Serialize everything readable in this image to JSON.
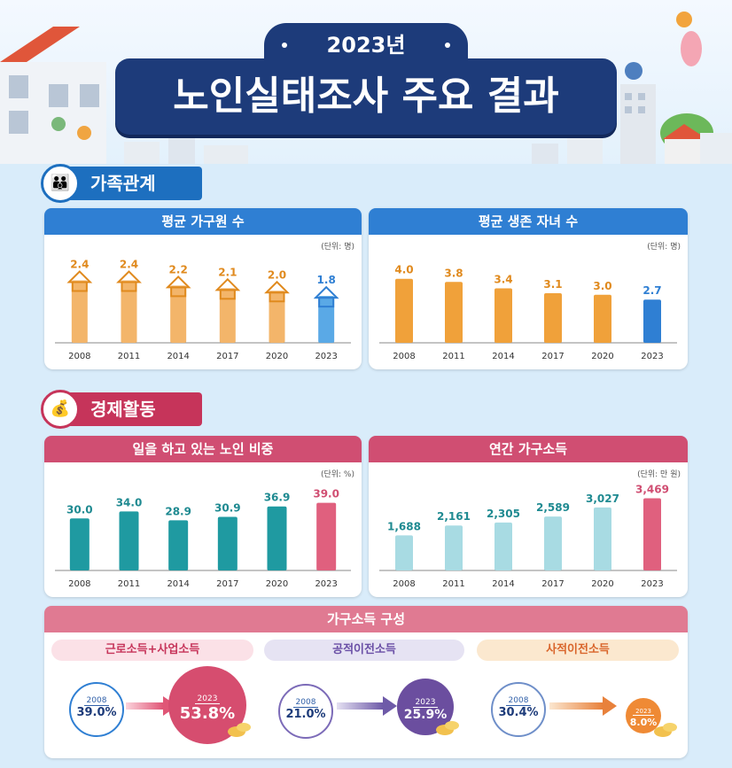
{
  "header": {
    "year_title": "2023년",
    "main_title": "노인실태조사 주요 결과"
  },
  "sections": {
    "family": "가족관계",
    "economy": "경제활동"
  },
  "colors": {
    "navy": "#1d3b7a",
    "blue": "#2f7fd3",
    "pink": "#d04e72",
    "orange_bar": "#f3b56a",
    "teal_bar": "#1f9aa1",
    "light_teal_bar": "#a8dbe3",
    "highlight_bar": "#5aa9e6",
    "highlight_pink": "#e0607e"
  },
  "chart_data": [
    {
      "type": "bar",
      "title": "평균 가구원 수",
      "unit": "(단위: 명)",
      "categories": [
        "2008",
        "2011",
        "2014",
        "2017",
        "2020",
        "2023"
      ],
      "values": [
        2.4,
        2.4,
        2.2,
        2.1,
        2.0,
        1.8
      ],
      "value_labels": [
        "2.4",
        "2.4",
        "2.2",
        "2.1",
        "2.0",
        "1.8"
      ],
      "ylim": [
        0,
        3.2
      ]
    },
    {
      "type": "bar",
      "title": "평균 생존 자녀 수",
      "unit": "(단위: 명)",
      "categories": [
        "2008",
        "2011",
        "2014",
        "2017",
        "2020",
        "2023"
      ],
      "values": [
        4.0,
        3.8,
        3.4,
        3.1,
        3.0,
        2.7
      ],
      "value_labels": [
        "4.0",
        "3.8",
        "3.4",
        "3.1",
        "3.0",
        "2.7"
      ],
      "ylim": [
        0,
        5.2
      ]
    },
    {
      "type": "bar",
      "title": "일을 하고 있는 노인 비중",
      "unit": "(단위: %)",
      "categories": [
        "2008",
        "2011",
        "2014",
        "2017",
        "2020",
        "2023"
      ],
      "values": [
        30.0,
        34.0,
        28.9,
        30.9,
        36.9,
        39.0
      ],
      "value_labels": [
        "30.0",
        "34.0",
        "28.9",
        "30.9",
        "36.9",
        "39.0"
      ],
      "ylim": [
        0,
        48
      ]
    },
    {
      "type": "bar",
      "title": "연간 가구소득",
      "unit": "(단위: 만 원)",
      "categories": [
        "2008",
        "2011",
        "2014",
        "2017",
        "2020",
        "2023"
      ],
      "values": [
        1688,
        2161,
        2305,
        2589,
        3027,
        3469
      ],
      "value_labels": [
        "1,688",
        "2,161",
        "2,305",
        "2,589",
        "3,027",
        "3,469"
      ],
      "ylim": [
        0,
        4000
      ]
    }
  ],
  "composition": {
    "title": "가구소득 구성",
    "items": [
      {
        "label": "근로소득+사업소득",
        "from_year": "2008",
        "from_value": "39.0%",
        "to_year": "2023",
        "to_value": "53.8%"
      },
      {
        "label": "공적이전소득",
        "from_year": "2008",
        "from_value": "21.0%",
        "to_year": "2023",
        "to_value": "25.9%"
      },
      {
        "label": "사적이전소득",
        "from_year": "2008",
        "from_value": "30.4%",
        "to_year": "2023",
        "to_value": "8.0%"
      }
    ]
  }
}
